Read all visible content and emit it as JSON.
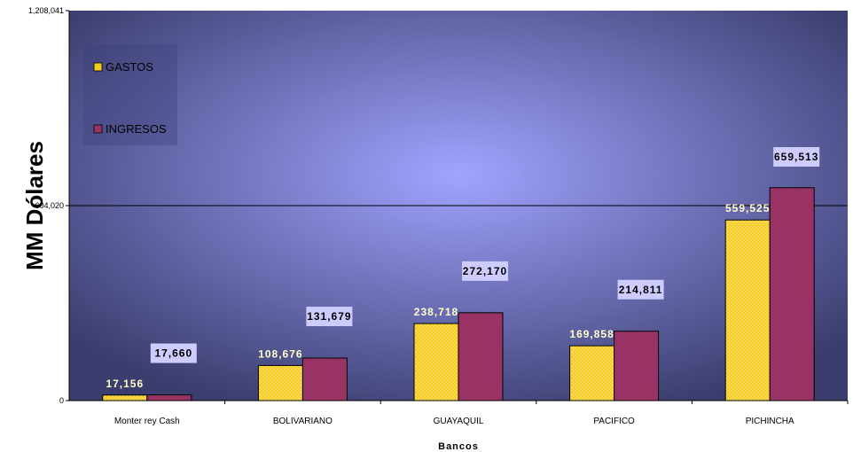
{
  "colors": {
    "gastos": "#f5cc1f",
    "ingresos": "#993366",
    "label_box": "#ccccff",
    "plot_center": "#a0a4ff",
    "plot_edge": "#3b3d6e"
  },
  "chart_data": {
    "type": "bar",
    "title": "",
    "xlabel": "Bancos",
    "ylabel": "MM Dólares",
    "ylim": [
      0,
      1208041
    ],
    "yticks": [
      {
        "value": 0,
        "label": "0"
      },
      {
        "value": 604020,
        "label": "604,020"
      },
      {
        "value": 1208041,
        "label": "1,208,041"
      }
    ],
    "grid": "major y at 604,020",
    "legend_position": "top-left",
    "categories": [
      "Monter rey Cash",
      "BOLIVARIANO",
      "GUAYAQUIL",
      "PACIFICO",
      "PICHINCHA"
    ],
    "series": [
      {
        "name": "GASTOS",
        "values": [
          17156,
          108676,
          238718,
          169858,
          559525
        ],
        "labels": [
          "17,156",
          "108,676",
          "238,718",
          "169,858",
          "559,525"
        ]
      },
      {
        "name": "INGRESOS",
        "values": [
          17660,
          131679,
          272170,
          214811,
          659513
        ],
        "labels": [
          "17,660",
          "131,679",
          "272,170",
          "214,811",
          "659,513"
        ]
      }
    ]
  }
}
